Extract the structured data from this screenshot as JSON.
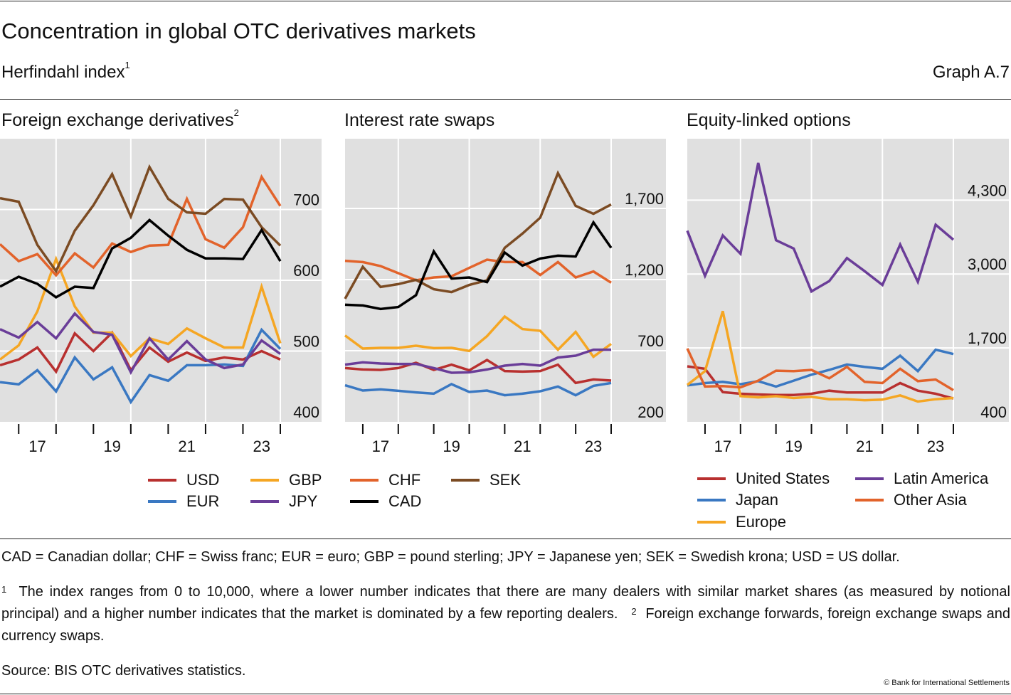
{
  "header": {
    "title": "Concentration in global OTC derivatives markets",
    "subtitle": "Herfindahl index",
    "subtitle_sup": "1",
    "graph_no": "Graph A.7"
  },
  "chart_data": [
    {
      "type": "line",
      "title": "Foreign exchange derivatives",
      "title_sup": "2",
      "ylim": [
        400,
        800
      ],
      "yticks": [
        "400",
        "500",
        "600",
        "700"
      ],
      "ytick_values": [
        400,
        500,
        600,
        700
      ],
      "x": [
        "H1 2016",
        "H2 2016",
        "H1 2017",
        "H2 2017",
        "H1 2018",
        "H2 2018",
        "H1 2019",
        "H2 2019",
        "H1 2020",
        "H2 2020",
        "H1 2021",
        "H2 2021",
        "H1 2022",
        "H2 2022",
        "H1 2023",
        "H2 2023"
      ],
      "xticks": [
        "17",
        "19",
        "21",
        "23"
      ],
      "series": [
        {
          "name": "USD",
          "color": "#b8302f",
          "values": [
            480,
            488,
            505,
            471,
            525,
            500,
            526,
            473,
            505,
            485,
            498,
            486,
            491,
            488,
            500,
            488
          ]
        },
        {
          "name": "GBP",
          "color": "#f5a623",
          "values": [
            488,
            508,
            556,
            630,
            563,
            526,
            526,
            493,
            518,
            510,
            532,
            518,
            505,
            505,
            591,
            511
          ]
        },
        {
          "name": "EUR",
          "color": "#3a78c2",
          "values": [
            456,
            453,
            473,
            443,
            491,
            460,
            477,
            428,
            466,
            458,
            480,
            480,
            481,
            479,
            530,
            503
          ]
        },
        {
          "name": "JPY",
          "color": "#6a3d98",
          "values": [
            531,
            519,
            541,
            518,
            553,
            527,
            523,
            470,
            518,
            488,
            514,
            488,
            476,
            481,
            515,
            496
          ]
        },
        {
          "name": "CHF",
          "color": "#e2632b",
          "values": [
            651,
            627,
            637,
            607,
            638,
            618,
            652,
            640,
            649,
            650,
            715,
            658,
            646,
            675,
            746,
            705
          ]
        },
        {
          "name": "SEK",
          "color": "#7b4b23",
          "values": [
            716,
            711,
            650,
            613,
            670,
            706,
            750,
            690,
            760,
            715,
            696,
            694,
            715,
            714,
            675,
            649
          ]
        },
        {
          "name": "CAD",
          "color": "#000000",
          "values": [
            591,
            605,
            595,
            576,
            591,
            589,
            645,
            660,
            685,
            663,
            643,
            631,
            631,
            630,
            671,
            627
          ]
        }
      ]
    },
    {
      "type": "line",
      "title": "Interest rate swaps",
      "ylim": [
        200,
        2190
      ],
      "yticks": [
        "200",
        "700",
        "1,200",
        "1,700"
      ],
      "ytick_values": [
        200,
        700,
        1200,
        1700
      ],
      "x": [
        "H1 2016",
        "H2 2016",
        "H1 2017",
        "H2 2017",
        "H1 2018",
        "H2 2018",
        "H1 2019",
        "H2 2019",
        "H1 2020",
        "H2 2020",
        "H1 2021",
        "H2 2021",
        "H1 2022",
        "H2 2022",
        "H1 2023",
        "H2 2023"
      ],
      "xticks": [
        "17",
        "19",
        "21",
        "23"
      ],
      "series": [
        {
          "name": "USD",
          "color": "#b8302f",
          "values": [
            578,
            568,
            565,
            578,
            615,
            565,
            602,
            562,
            635,
            557,
            553,
            557,
            602,
            473,
            498,
            490
          ]
        },
        {
          "name": "GBP",
          "color": "#f5a623",
          "values": [
            807,
            715,
            720,
            720,
            735,
            718,
            720,
            698,
            802,
            940,
            852,
            840,
            707,
            832,
            657,
            748
          ]
        },
        {
          "name": "EUR",
          "color": "#3a78c2",
          "values": [
            457,
            420,
            428,
            418,
            407,
            398,
            465,
            410,
            420,
            387,
            398,
            415,
            448,
            387,
            453,
            473
          ]
        },
        {
          "name": "JPY",
          "color": "#6a3d98",
          "values": [
            602,
            618,
            610,
            607,
            607,
            578,
            545,
            548,
            568,
            595,
            607,
            595,
            652,
            665,
            707,
            707
          ]
        },
        {
          "name": "CHF",
          "color": "#e2632b",
          "values": [
            1332,
            1323,
            1295,
            1245,
            1195,
            1215,
            1223,
            1282,
            1340,
            1323,
            1323,
            1232,
            1323,
            1215,
            1257,
            1178
          ]
        },
        {
          "name": "SEK",
          "color": "#7b4b23",
          "values": [
            1065,
            1290,
            1148,
            1168,
            1198,
            1132,
            1112,
            1162,
            1195,
            1423,
            1523,
            1635,
            1948,
            1718,
            1662,
            1728
          ]
        },
        {
          "name": "CAD",
          "color": "#000000",
          "values": [
            1023,
            1018,
            993,
            1007,
            1090,
            1398,
            1207,
            1215,
            1182,
            1390,
            1298,
            1348,
            1368,
            1362,
            1602,
            1423
          ]
        }
      ]
    },
    {
      "type": "line",
      "title": "Equity-linked options",
      "ylim": [
        400,
        5380
      ],
      "yticks": [
        "400",
        "1,700",
        "3,000",
        "4,300"
      ],
      "ytick_values": [
        400,
        1700,
        3000,
        4300
      ],
      "x": [
        "H1 2016",
        "H2 2016",
        "H1 2017",
        "H2 2017",
        "H1 2018",
        "H2 2018",
        "H1 2019",
        "H2 2019",
        "H1 2020",
        "H2 2020",
        "H1 2021",
        "H2 2021",
        "H1 2022",
        "H2 2022",
        "H1 2023",
        "H2 2023"
      ],
      "xticks": [
        "17",
        "19",
        "21",
        "23"
      ],
      "series": [
        {
          "name": "United States",
          "color": "#b8302f",
          "values": [
            1376,
            1334,
            923,
            894,
            882,
            873,
            873,
            894,
            948,
            915,
            915,
            915,
            1082,
            948,
            894,
            810
          ]
        },
        {
          "name": "Japan",
          "color": "#3a78c2",
          "values": [
            1041,
            1082,
            1103,
            1062,
            1116,
            1020,
            1124,
            1229,
            1313,
            1409,
            1367,
            1334,
            1564,
            1292,
            1669,
            1593
          ]
        },
        {
          "name": "Europe",
          "color": "#f5a623",
          "values": [
            1049,
            1292,
            2347,
            852,
            831,
            852,
            819,
            840,
            798,
            798,
            781,
            790,
            865,
            756,
            798,
            819
          ]
        },
        {
          "name": "Latin America",
          "color": "#6a3d98",
          "values": [
            3762,
            2967,
            3678,
            3356,
            4955,
            3595,
            3448,
            2694,
            2875,
            3281,
            3050,
            2807,
            3519,
            2862,
            3867,
            3603
          ]
        },
        {
          "name": "Other Asia",
          "color": "#e2632b",
          "values": [
            1690,
            1020,
            1028,
            1007,
            1124,
            1300,
            1292,
            1313,
            1166,
            1367,
            1103,
            1082,
            1334,
            1116,
            1145,
            957
          ]
        }
      ]
    }
  ],
  "footer": {
    "abbrev": "CAD = Canadian dollar; CHF = Swiss franc; EUR = euro; GBP = pound sterling; JPY = Japanese yen; SEK = Swedish krona; USD = US dollar.",
    "note1_mark": "1",
    "note1": "The index ranges from 0 to 10,000, where a lower number indicates that there are many dealers with similar market shares (as measured by notional principal) and a higher number indicates that the market is dominated by a few reporting dealers.",
    "note2_mark": "2",
    "note2": "Foreign exchange forwards, foreign exchange swaps and currency swaps.",
    "source": "Source: BIS OTC derivatives statistics.",
    "copyright": "© Bank for International Settlements"
  }
}
